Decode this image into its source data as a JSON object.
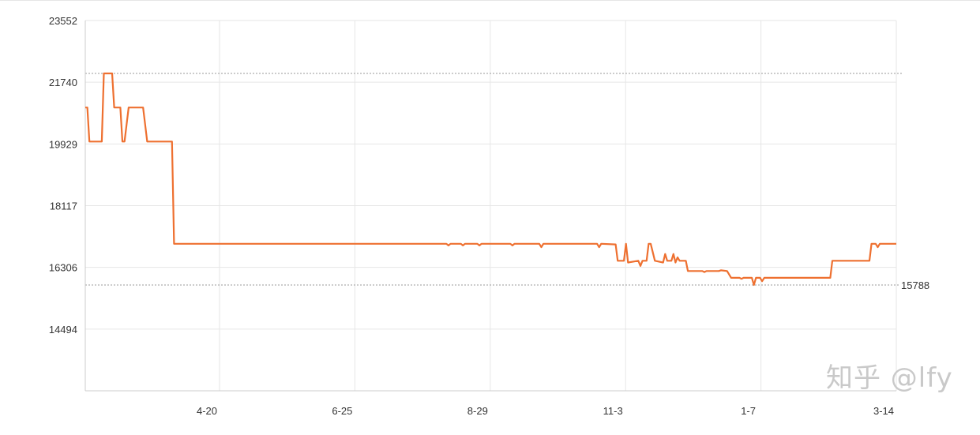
{
  "chart_data": {
    "type": "line",
    "title": "",
    "xlabel": "",
    "ylabel": "",
    "ylim": [
      12683,
      23552
    ],
    "y_ticks": [
      "23552",
      "21740",
      "19929",
      "18117",
      "16306",
      "14494"
    ],
    "x_ticks": [
      "4-20",
      "6-25",
      "8-29",
      "11-3",
      "1-7",
      "3-14"
    ],
    "grid": true,
    "line_color": "#ee7030",
    "reference_lines": {
      "max": 21999,
      "min": 15788,
      "min_label": "15788"
    },
    "points": [
      [
        "2-14",
        20999
      ],
      [
        "2-15",
        20999
      ],
      [
        "2-16",
        19999
      ],
      [
        "2-22",
        19999
      ],
      [
        "2-23",
        21999
      ],
      [
        "2-27",
        21999
      ],
      [
        "2-28",
        20999
      ],
      [
        "3-3",
        20999
      ],
      [
        "3-4",
        19999
      ],
      [
        "3-5",
        19999
      ],
      [
        "3-7",
        20999
      ],
      [
        "3-14",
        20999
      ],
      [
        "3-16",
        19999
      ],
      [
        "3-28",
        19999
      ],
      [
        "3-29",
        16999
      ],
      [
        "8-8",
        16999
      ],
      [
        "8-9",
        16949
      ],
      [
        "8-10",
        16999
      ],
      [
        "8-15",
        16999
      ],
      [
        "8-16",
        16949
      ],
      [
        "8-17",
        16999
      ],
      [
        "8-23",
        16999
      ],
      [
        "8-24",
        16949
      ],
      [
        "8-25",
        16999
      ],
      [
        "9-8",
        16999
      ],
      [
        "9-9",
        16949
      ],
      [
        "9-10",
        16999
      ],
      [
        "9-22",
        16999
      ],
      [
        "9-23",
        16899
      ],
      [
        "9-24",
        16999
      ],
      [
        "10-20",
        16999
      ],
      [
        "10-21",
        16899
      ],
      [
        "10-22",
        16999
      ],
      [
        "10-29",
        16979
      ],
      [
        "10-30",
        16499
      ],
      [
        "11-2",
        16499
      ],
      [
        "11-3",
        16999
      ],
      [
        "11-4",
        16449
      ],
      [
        "11-9",
        16499
      ],
      [
        "11-10",
        16349
      ],
      [
        "11-11",
        16499
      ],
      [
        "11-13",
        16499
      ],
      [
        "11-14",
        16999
      ],
      [
        "11-15",
        16999
      ],
      [
        "11-17",
        16499
      ],
      [
        "11-21",
        16449
      ],
      [
        "11-22",
        16699
      ],
      [
        "11-23",
        16499
      ],
      [
        "11-25",
        16499
      ],
      [
        "11-26",
        16699
      ],
      [
        "11-27",
        16449
      ],
      [
        "11-28",
        16599
      ],
      [
        "11-29",
        16499
      ],
      [
        "12-2",
        16499
      ],
      [
        "12-3",
        16199
      ],
      [
        "12-10",
        16199
      ],
      [
        "12-11",
        16169
      ],
      [
        "12-12",
        16199
      ],
      [
        "12-18",
        16199
      ],
      [
        "12-19",
        16219
      ],
      [
        "12-22",
        16199
      ],
      [
        "12-24",
        15999
      ],
      [
        "12-28",
        15999
      ],
      [
        "12-29",
        15969
      ],
      [
        "12-30",
        15999
      ],
      [
        "1-3",
        15999
      ],
      [
        "1-4",
        15788
      ],
      [
        "1-5",
        15999
      ],
      [
        "1-7",
        15999
      ],
      [
        "1-8",
        15899
      ],
      [
        "1-9",
        15999
      ],
      [
        "2-10",
        15999
      ],
      [
        "2-11",
        16499
      ],
      [
        "3-1",
        16499
      ],
      [
        "3-2",
        16999
      ],
      [
        "3-4",
        16999
      ],
      [
        "3-5",
        16899
      ],
      [
        "3-6",
        16999
      ],
      [
        "3-14",
        16999
      ]
    ]
  },
  "watermark": "知乎 @lfy"
}
